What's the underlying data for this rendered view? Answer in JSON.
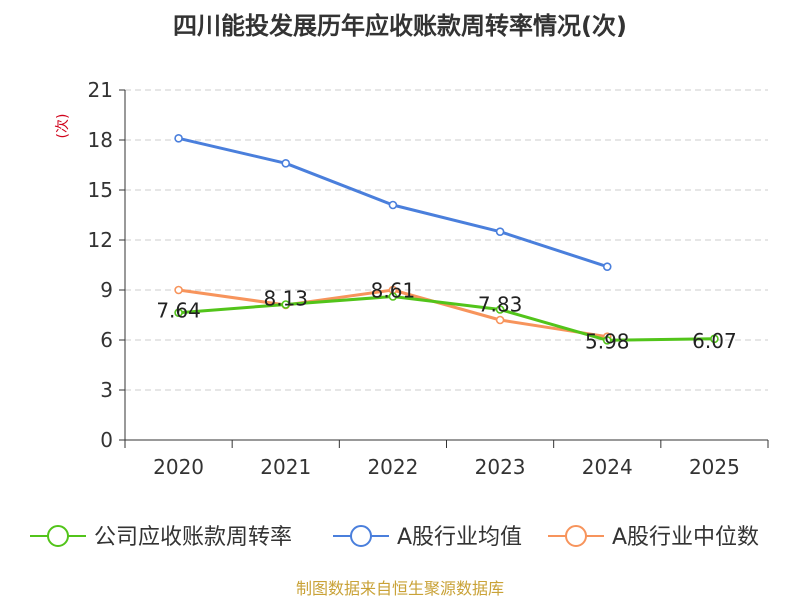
{
  "chart_data": {
    "type": "line",
    "title": "四川能投发展历年应收账款周转率情况(次)",
    "ylabel": "(次)",
    "xlabel": "",
    "categories": [
      "2020",
      "2021",
      "2022",
      "2023",
      "2024",
      "2025"
    ],
    "ylim": [
      0,
      21
    ],
    "yticks": [
      0,
      3,
      6,
      9,
      12,
      15,
      18,
      21
    ],
    "grid": true,
    "legend_position": "bottom",
    "series": [
      {
        "name": "公司应收账款周转率",
        "color": "#52c41a",
        "values": [
          7.64,
          8.13,
          8.61,
          7.83,
          5.98,
          6.07
        ],
        "labels": [
          "7.64",
          "8.13",
          "8.61",
          "7.83",
          "5.98",
          "6.07"
        ]
      },
      {
        "name": "A股行业均值",
        "color": "#4a7fdc",
        "values": [
          18.1,
          16.6,
          14.1,
          12.5,
          10.4,
          null
        ]
      },
      {
        "name": "A股行业中位数",
        "color": "#f7945c",
        "values": [
          9.0,
          8.1,
          9.0,
          7.2,
          6.2,
          null
        ]
      }
    ],
    "source": "制图数据来自恒生聚源数据库"
  }
}
